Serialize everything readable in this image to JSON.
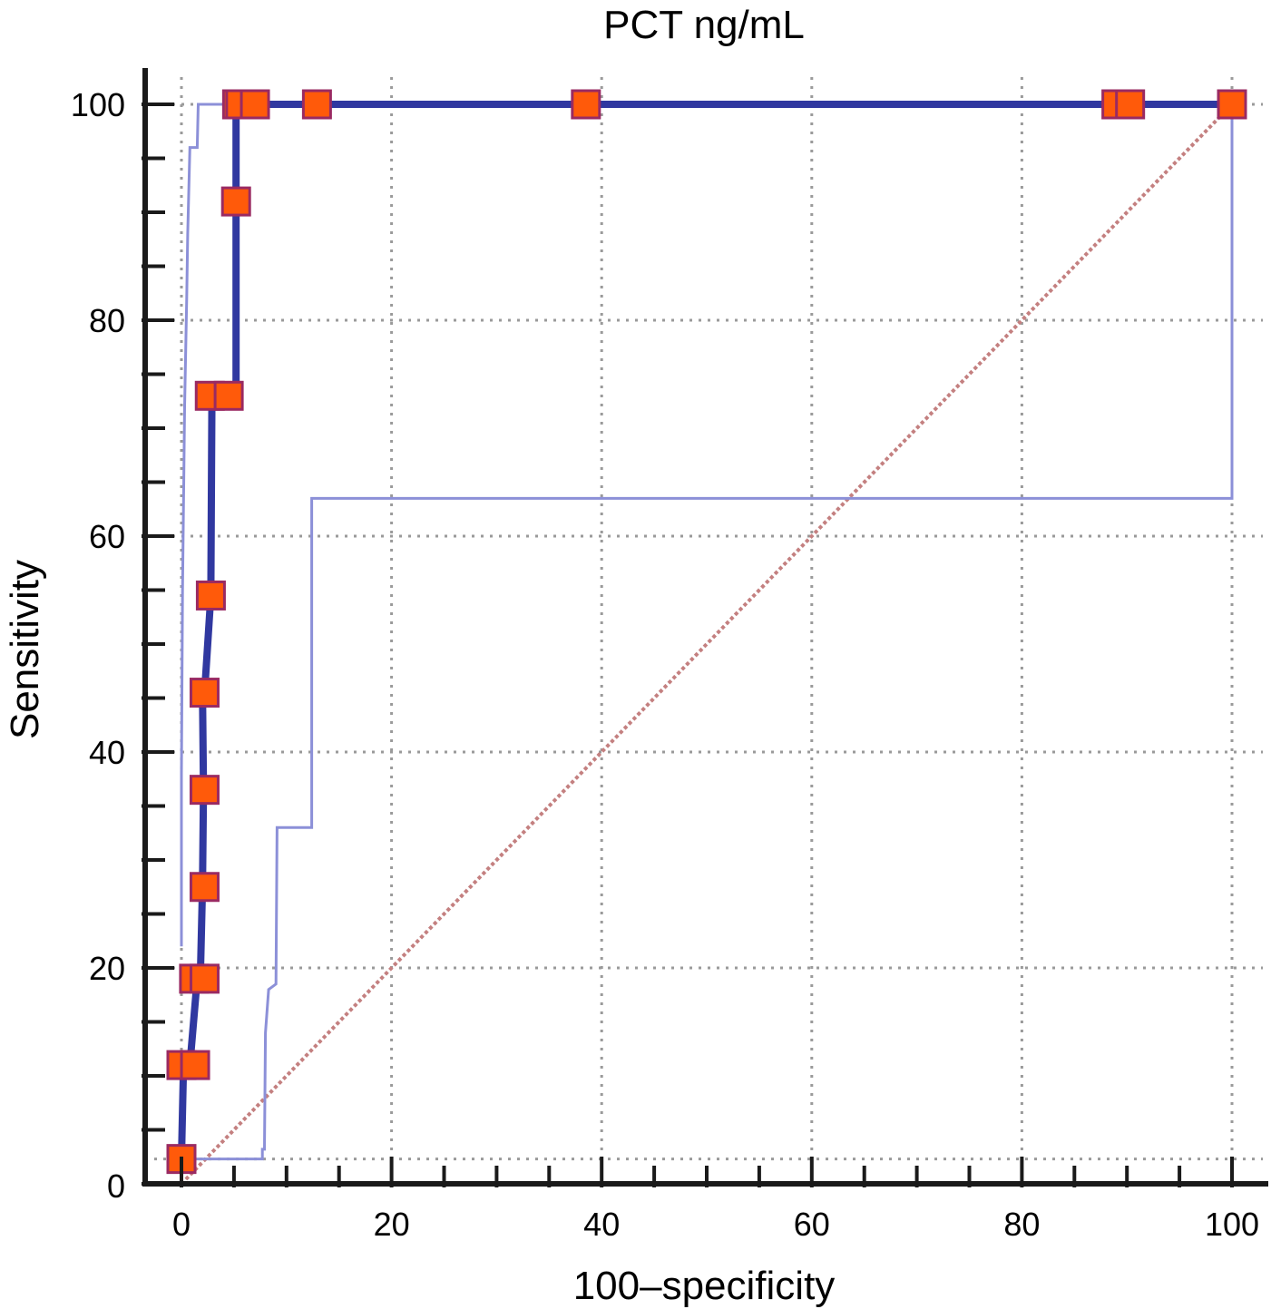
{
  "chart_data": {
    "type": "line",
    "title": "PCT ng/mL",
    "xlabel": "100–specificity",
    "ylabel": "Sensitivity",
    "xlim": [
      0,
      100
    ],
    "ylim": [
      0,
      100
    ],
    "x_ticks": [
      "0",
      "20",
      "40",
      "60",
      "80",
      "100"
    ],
    "y_ticks": [
      "0",
      "20",
      "40",
      "60",
      "80",
      "100"
    ],
    "grid": true,
    "series": [
      {
        "style": "solid-thick",
        "color": "#3038a0",
        "marker": "square",
        "marker_color": "#ff5a0a",
        "x": [
          0,
          0.2,
          0.8,
          1.5,
          1.8,
          2.0,
          2.1,
          2.0,
          2.2,
          2.8,
          2.9,
          2.9,
          3.5,
          4.5,
          5.2,
          5.2,
          5.2,
          5.2,
          5.5,
          7.0,
          12.9,
          38.5,
          88.7,
          89.8,
          100
        ],
        "y": [
          2.3,
          11,
          11,
          19,
          19,
          27.5,
          36.5,
          45.5,
          45.5,
          54.5,
          73,
          73,
          73,
          73,
          73,
          91,
          100,
          100,
          100,
          100,
          100,
          100,
          100,
          100,
          100
        ],
        "marker_x": [
          0,
          0,
          1.3,
          1.2,
          2.2,
          2.2,
          2.2,
          2.2,
          2.8,
          2.7,
          4.5,
          5.2,
          5.3,
          5.6,
          7.0,
          12.9,
          38.5,
          89.0,
          90.3,
          100
        ],
        "marker_y": [
          2.3,
          11,
          11,
          19,
          19,
          27.5,
          36.5,
          45.5,
          54.5,
          73,
          73,
          91,
          100,
          100,
          100,
          100,
          100,
          100,
          100,
          100
        ]
      },
      {
        "style": "thin",
        "color": "#8c90d8",
        "x": [
          0,
          0,
          0.1,
          0.3,
          0.5,
          0.6,
          0.8,
          1.5,
          1.6,
          100
        ],
        "y": [
          22,
          38,
          55,
          72,
          82,
          88,
          96,
          96,
          100,
          100
        ]
      },
      {
        "style": "thin",
        "color": "#8c90d8",
        "x": [
          0,
          7.7,
          7.7,
          7.9,
          8.0,
          8.3,
          9.0,
          9.1,
          12.4,
          12.4,
          100,
          100
        ],
        "y": [
          2.3,
          2.3,
          3.2,
          3.2,
          14,
          18,
          18.5,
          33,
          33,
          63.5,
          63.5,
          100
        ]
      },
      {
        "style": "diagonal-reference",
        "color": "#c48080",
        "x": [
          0,
          100
        ],
        "y": [
          0,
          100
        ]
      }
    ]
  }
}
